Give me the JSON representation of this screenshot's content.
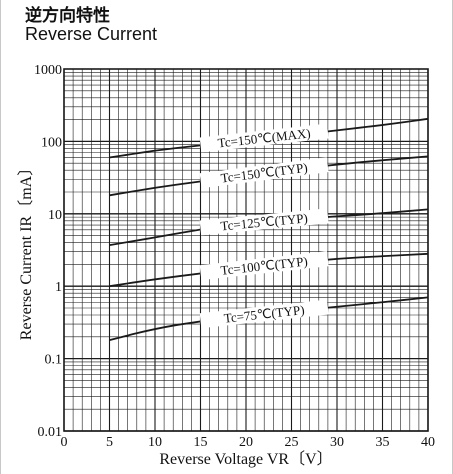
{
  "header": {
    "title_jp": "逆方向特性",
    "title_en": "Reverse  Current"
  },
  "colors": {
    "grid": "#1a1a1a",
    "curve": "#1a1a1a",
    "label_background": "#ffffff"
  },
  "chart_data": {
    "type": "line",
    "title": "逆方向特性 Reverse Current",
    "xlabel": "Reverse Voltage VR〔V〕",
    "ylabel": "Reverse Current IR〔mA〕",
    "xlim": [
      0,
      40
    ],
    "ylim": [
      0.01,
      1000
    ],
    "yscale": "log",
    "grid": true,
    "x_ticks": [
      0,
      5,
      10,
      15,
      20,
      25,
      30,
      35,
      40
    ],
    "x_tick_labels": [
      "0",
      "5",
      "10",
      "15",
      "20",
      "25",
      "30",
      "35",
      "40"
    ],
    "y_ticks": [
      0.01,
      0.1,
      1,
      10,
      100,
      1000
    ],
    "y_tick_labels": [
      "0.01",
      "0.1",
      "1",
      "10",
      "100",
      "1000"
    ],
    "series": [
      {
        "name": "Tc=150℃(MAX)",
        "x": [
          5,
          10,
          15,
          20,
          25,
          30,
          35,
          40
        ],
        "y": [
          60,
          75,
          88,
          103,
          120,
          142,
          168,
          205
        ]
      },
      {
        "name": "Tc=150℃(TYP)",
        "x": [
          5,
          10,
          15,
          20,
          25,
          30,
          35,
          40
        ],
        "y": [
          18,
          23,
          28,
          34,
          41,
          48,
          55,
          62
        ]
      },
      {
        "name": "Tc=125℃(TYP)",
        "x": [
          5,
          10,
          15,
          20,
          25,
          30,
          35,
          40
        ],
        "y": [
          3.7,
          4.7,
          6.1,
          7.5,
          8.4,
          9.2,
          10.2,
          11.5
        ]
      },
      {
        "name": "Tc=100℃(TYP)",
        "x": [
          5,
          10,
          15,
          20,
          25,
          30,
          35,
          40
        ],
        "y": [
          1.0,
          1.25,
          1.5,
          1.8,
          2.1,
          2.4,
          2.6,
          2.8
        ]
      },
      {
        "name": "Tc=75℃(TYP)",
        "x": [
          5,
          10,
          15,
          20,
          25,
          30,
          35,
          40
        ],
        "y": [
          0.18,
          0.26,
          0.33,
          0.38,
          0.45,
          0.52,
          0.6,
          0.7
        ]
      }
    ]
  }
}
